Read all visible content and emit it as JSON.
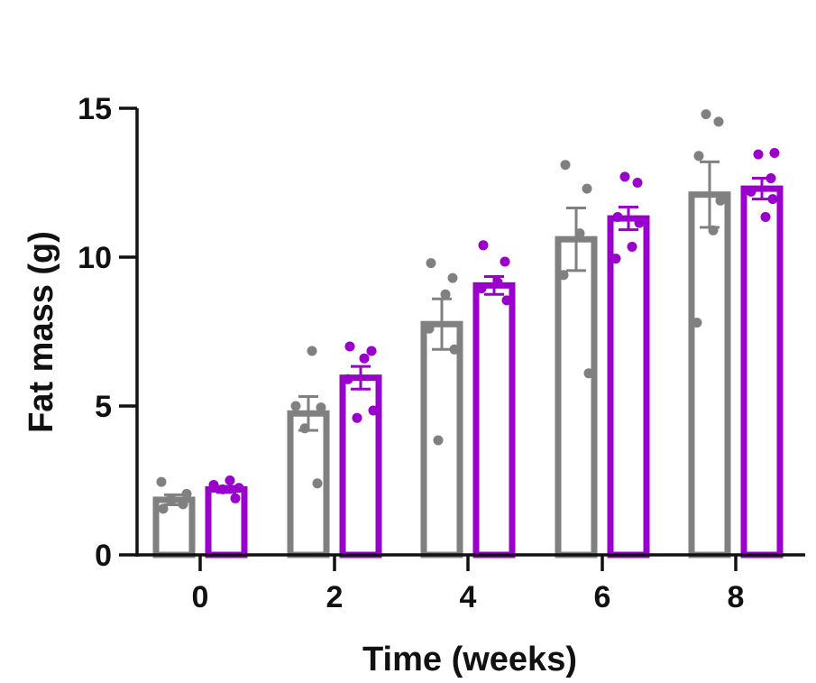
{
  "chart_data": {
    "type": "bar",
    "title": "",
    "xlabel": "Time (weeks)",
    "ylabel": "Fat mass (g)",
    "ylim": [
      0,
      15
    ],
    "yticks": [
      "0",
      "5",
      "10",
      "15"
    ],
    "categories": [
      "0",
      "2",
      "4",
      "6",
      "8"
    ],
    "grid": false,
    "legend": "none",
    "error_bars": "SEM",
    "series": [
      {
        "color": "#808080",
        "values": [
          1.85,
          4.75,
          7.75,
          10.6,
          12.1
        ],
        "errors": [
          0.17,
          0.57,
          0.85,
          1.05,
          1.1
        ],
        "points": [
          [
            1.55,
            1.7,
            1.85,
            2.05,
            2.45
          ],
          [
            2.4,
            4.25,
            4.95,
            5.0,
            6.85
          ],
          [
            3.85,
            6.9,
            7.6,
            8.75,
            9.3,
            9.8
          ],
          [
            6.1,
            9.4,
            10.8,
            12.3,
            13.1
          ],
          [
            7.8,
            10.9,
            11.9,
            13.4,
            14.55,
            14.8
          ]
        ]
      },
      {
        "color": "#9900cc",
        "values": [
          2.2,
          5.95,
          9.05,
          11.3,
          12.3
        ],
        "errors": [
          0.1,
          0.38,
          0.3,
          0.38,
          0.35
        ],
        "points": [
          [
            1.9,
            2.2,
            2.25,
            2.35,
            2.5
          ],
          [
            4.6,
            4.85,
            5.9,
            6.6,
            6.85,
            7.0
          ],
          [
            8.55,
            8.95,
            9.15,
            9.85,
            10.4
          ],
          [
            9.95,
            10.35,
            11.15,
            11.35,
            12.5,
            12.7
          ],
          [
            11.35,
            11.95,
            12.2,
            12.65,
            13.45,
            13.5
          ]
        ]
      }
    ]
  }
}
